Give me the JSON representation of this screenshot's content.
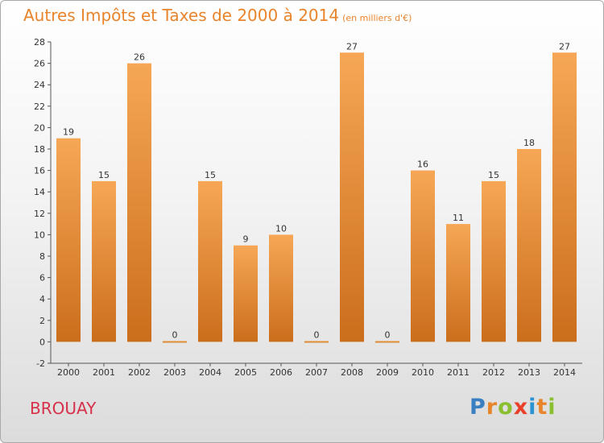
{
  "title": "Autres Impôts et Taxes de 2000 à 2014",
  "unit_label": "(en milliers d'€)",
  "place": "BROUAY",
  "logo": {
    "letters": [
      "P",
      "r",
      "o",
      "x",
      "i",
      "t",
      "i"
    ],
    "colors": [
      "#3a7fc1",
      "#e8852c",
      "#8abf2f",
      "#e8402a",
      "#2c93d2",
      "#e8852c",
      "#8abf2f"
    ]
  },
  "colors": {
    "title": "#e8842b",
    "place": "#d7304a",
    "bar_light": "#f6a755",
    "bar_dark": "#cb6e1c"
  },
  "chart_data": {
    "type": "bar",
    "title": "Autres Impôts et Taxes de 2000 à 2014",
    "categories": [
      "2000",
      "2001",
      "2002",
      "2003",
      "2004",
      "2005",
      "2006",
      "2007",
      "2008",
      "2009",
      "2010",
      "2011",
      "2012",
      "2013",
      "2014"
    ],
    "values": [
      19,
      15,
      26,
      0,
      15,
      9,
      10,
      0,
      27,
      0,
      16,
      11,
      15,
      18,
      27
    ],
    "ylim": [
      -2,
      28
    ],
    "yticks": [
      -2,
      0,
      2,
      4,
      6,
      8,
      10,
      12,
      14,
      16,
      18,
      20,
      22,
      24,
      26,
      28
    ],
    "grid": false,
    "legend": "none"
  }
}
